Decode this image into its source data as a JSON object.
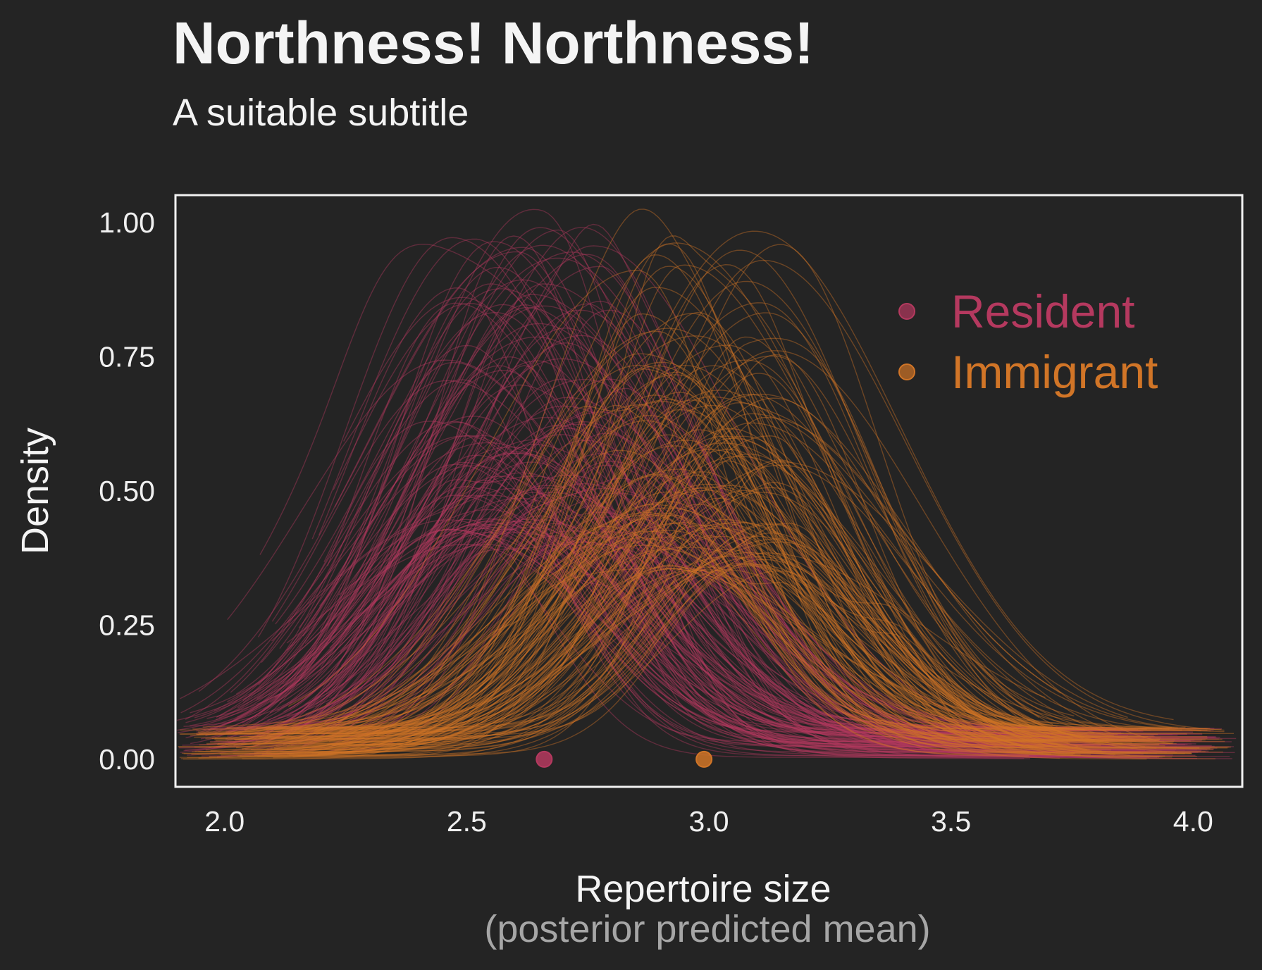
{
  "chart_data": {
    "type": "line",
    "title": "Northness! Northness!",
    "subtitle": "A suitable subtitle",
    "xlabel": "Repertoire size",
    "xlabel_sub": "(posterior predicted mean)",
    "ylabel": "Density",
    "xlim": [
      1.9,
      4.1
    ],
    "ylim": [
      -0.05,
      1.05
    ],
    "x_ticks": [
      2.0,
      2.5,
      3.0,
      3.5,
      4.0
    ],
    "x_tick_labels": [
      "2.0",
      "2.5",
      "3.0",
      "3.5",
      "4.0"
    ],
    "y_ticks": [
      0.0,
      0.25,
      0.5,
      0.75,
      1.0
    ],
    "y_tick_labels": [
      "0.00",
      "0.25",
      "0.50",
      "0.75",
      "1.00"
    ],
    "grid": false,
    "legend_position": "top-right",
    "series": [
      {
        "name": "Resident",
        "color": "#b5395f",
        "mean_point": {
          "x": 2.66,
          "y": 0.0
        },
        "draws": 150,
        "peak_x_range": [
          2.45,
          2.8
        ],
        "peak_y_range": [
          0.4,
          1.0
        ]
      },
      {
        "name": "Immigrant",
        "color": "#d17527",
        "mean_point": {
          "x": 2.99,
          "y": 0.0
        },
        "draws": 150,
        "peak_x_range": [
          2.85,
          3.15
        ],
        "peak_y_range": [
          0.35,
          1.0
        ]
      }
    ]
  }
}
